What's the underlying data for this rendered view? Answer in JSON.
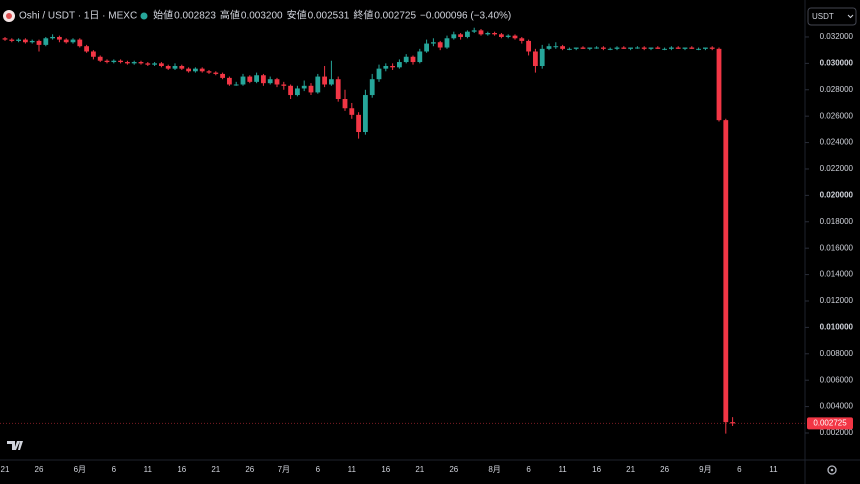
{
  "header": {
    "symbol": "Oshi / USDT · 1日 · MEXC",
    "ohlc": [
      {
        "label": "始値",
        "value": "0.002823"
      },
      {
        "label": "高値",
        "value": "0.003200"
      },
      {
        "label": "安値",
        "value": "0.002531"
      },
      {
        "label": "終値",
        "value": "0.002725"
      }
    ],
    "change": "−0.000096 (−3.40%)",
    "currency": "USDT"
  },
  "chart_data": {
    "type": "candlestick",
    "up_color": "#26a69a",
    "down_color": "#f23645",
    "categories": [
      "21",
      null,
      null,
      null,
      null,
      "26",
      null,
      null,
      null,
      null,
      null,
      "6月",
      null,
      null,
      null,
      null,
      "6",
      null,
      null,
      null,
      null,
      "11",
      null,
      null,
      null,
      null,
      "16",
      null,
      null,
      null,
      null,
      "21",
      null,
      null,
      null,
      null,
      "26",
      null,
      null,
      null,
      null,
      "7月",
      null,
      null,
      null,
      null,
      "6",
      null,
      null,
      null,
      null,
      "11",
      null,
      null,
      null,
      null,
      "16",
      null,
      null,
      null,
      null,
      "21",
      null,
      null,
      null,
      null,
      "26",
      null,
      null,
      null,
      null,
      null,
      "8月",
      null,
      null,
      null,
      null,
      "6",
      null,
      null,
      null,
      null,
      "11",
      null,
      null,
      null,
      null,
      "16",
      null,
      null,
      null,
      null,
      "21",
      null,
      null,
      null,
      null,
      "26",
      null,
      null,
      null,
      null,
      null,
      "9月",
      null,
      null,
      null,
      null,
      "6",
      null,
      null,
      null,
      null,
      "11",
      null,
      null,
      null,
      null
    ],
    "open": [
      0.0319,
      0.0318,
      0.0317,
      0.0318,
      0.0316,
      0.0317,
      0.0314,
      0.0319,
      0.032,
      0.0318,
      0.0316,
      0.0318,
      0.0313,
      0.0309,
      0.0305,
      0.0302,
      0.0301,
      0.0302,
      0.0301,
      0.03,
      0.0301,
      0.03,
      0.0299,
      0.03,
      0.0298,
      0.0296,
      0.0298,
      0.0296,
      0.0294,
      0.0296,
      0.0294,
      0.0293,
      0.0292,
      0.0289,
      0.0284,
      0.0284,
      0.029,
      0.0286,
      0.0291,
      0.0285,
      0.0288,
      0.0284,
      0.0283,
      0.0276,
      0.0281,
      0.0283,
      0.0278,
      0.029,
      0.0284,
      0.0288,
      0.0273,
      0.0266,
      0.0261,
      0.0248,
      0.0276,
      0.0288,
      0.0296,
      0.0298,
      0.0297,
      0.0301,
      0.0305,
      0.0301,
      0.0309,
      0.0315,
      0.0316,
      0.0312,
      0.0319,
      0.0322,
      0.032,
      0.0324,
      0.0325,
      0.0322,
      0.0323,
      0.0322,
      0.032,
      0.0321,
      0.0319,
      0.0317,
      0.0309,
      0.0298,
      0.0311,
      0.0313,
      0.0313,
      0.0311,
      0.0311,
      0.0312,
      0.0311,
      0.0312,
      0.0312,
      0.0311,
      0.0311,
      0.0312,
      0.0311,
      0.0312,
      0.0312,
      0.0311,
      0.0312,
      0.0311,
      0.0311,
      0.0312,
      0.0311,
      0.0312,
      0.0311,
      0.0311,
      0.0312,
      0.0311,
      0.0257,
      0.002823,
      null,
      null,
      null,
      null,
      null,
      null,
      null,
      null,
      null,
      null
    ],
    "high": [
      0.032,
      0.0319,
      0.0319,
      0.0319,
      0.0318,
      0.0318,
      0.032,
      0.0322,
      0.0321,
      0.0319,
      0.0319,
      0.0319,
      0.0314,
      0.031,
      0.0306,
      0.0303,
      0.0303,
      0.0303,
      0.0302,
      0.0302,
      0.0302,
      0.0301,
      0.0301,
      0.0301,
      0.0299,
      0.03,
      0.0299,
      0.0297,
      0.0297,
      0.0297,
      0.0295,
      0.0294,
      0.0293,
      0.029,
      0.0286,
      0.0292,
      0.0291,
      0.0293,
      0.0292,
      0.029,
      0.0289,
      0.0286,
      0.0284,
      0.0283,
      0.0287,
      0.0285,
      0.0292,
      0.0298,
      0.0302,
      0.029,
      0.028,
      0.027,
      0.0263,
      0.028,
      0.0292,
      0.0299,
      0.03,
      0.03,
      0.0303,
      0.0307,
      0.0306,
      0.0311,
      0.0318,
      0.0319,
      0.0317,
      0.0321,
      0.0324,
      0.0323,
      0.0325,
      0.0327,
      0.0326,
      0.0324,
      0.0324,
      0.0323,
      0.0322,
      0.0322,
      0.032,
      0.0318,
      0.0311,
      0.0314,
      0.0315,
      0.0316,
      0.0314,
      0.0312,
      0.0312,
      0.0313,
      0.0312,
      0.0313,
      0.0313,
      0.0312,
      0.0313,
      0.0313,
      0.0312,
      0.0313,
      0.0313,
      0.0312,
      0.0313,
      0.0312,
      0.0313,
      0.0313,
      0.0312,
      0.0313,
      0.0312,
      0.0312,
      0.0313,
      0.0312,
      0.0258,
      0.0032,
      null,
      null,
      null,
      null,
      null,
      null,
      null,
      null,
      null,
      null
    ],
    "low": [
      0.0317,
      0.0316,
      0.0316,
      0.0315,
      0.0315,
      0.0309,
      0.0313,
      0.0318,
      0.0316,
      0.0315,
      0.0315,
      0.0312,
      0.0308,
      0.0303,
      0.0301,
      0.03,
      0.03,
      0.03,
      0.0299,
      0.0299,
      0.0299,
      0.0298,
      0.0298,
      0.0297,
      0.0295,
      0.0295,
      0.0295,
      0.0293,
      0.0293,
      0.0293,
      0.0292,
      0.0291,
      0.0288,
      0.0283,
      0.0283,
      0.0283,
      0.0285,
      0.0285,
      0.0283,
      0.0284,
      0.0282,
      0.028,
      0.0273,
      0.0275,
      0.0279,
      0.0276,
      0.0277,
      0.0282,
      0.0283,
      0.0271,
      0.0264,
      0.0258,
      0.0243,
      0.0246,
      0.0274,
      0.0286,
      0.0294,
      0.0295,
      0.0296,
      0.03,
      0.0299,
      0.03,
      0.0308,
      0.0313,
      0.031,
      0.0311,
      0.0318,
      0.0318,
      0.0319,
      0.0323,
      0.0321,
      0.0321,
      0.0321,
      0.0319,
      0.0319,
      0.0318,
      0.0315,
      0.0306,
      0.0293,
      0.0296,
      0.031,
      0.0311,
      0.031,
      0.031,
      0.031,
      0.0311,
      0.031,
      0.0311,
      0.031,
      0.031,
      0.031,
      0.0311,
      0.031,
      0.0311,
      0.031,
      0.031,
      0.0311,
      0.031,
      0.031,
      0.0311,
      0.031,
      0.0311,
      0.031,
      0.031,
      0.031,
      0.0256,
      0.00195,
      0.002531,
      null,
      null,
      null,
      null,
      null,
      null,
      null,
      null,
      null,
      null
    ],
    "close": [
      0.0318,
      0.0317,
      0.0318,
      0.0316,
      0.0317,
      0.0314,
      0.0319,
      0.032,
      0.0318,
      0.0316,
      0.0318,
      0.0313,
      0.0309,
      0.0305,
      0.0302,
      0.0301,
      0.0302,
      0.0301,
      0.03,
      0.0301,
      0.03,
      0.0299,
      0.03,
      0.0298,
      0.0296,
      0.0298,
      0.0296,
      0.0294,
      0.0296,
      0.0294,
      0.0293,
      0.0292,
      0.0289,
      0.0284,
      0.0284,
      0.029,
      0.0286,
      0.0291,
      0.0285,
      0.0288,
      0.0284,
      0.0283,
      0.0276,
      0.0281,
      0.0283,
      0.0278,
      0.029,
      0.0284,
      0.0288,
      0.0273,
      0.0266,
      0.0261,
      0.0248,
      0.0276,
      0.0288,
      0.0296,
      0.0298,
      0.0297,
      0.0301,
      0.0305,
      0.0301,
      0.0309,
      0.0315,
      0.0316,
      0.0312,
      0.0319,
      0.0322,
      0.032,
      0.0324,
      0.0325,
      0.0322,
      0.0323,
      0.0322,
      0.032,
      0.0321,
      0.0319,
      0.0317,
      0.0309,
      0.0298,
      0.0311,
      0.0313,
      0.0313,
      0.0311,
      0.0311,
      0.0312,
      0.0311,
      0.0312,
      0.0312,
      0.0311,
      0.0311,
      0.0312,
      0.0311,
      0.0312,
      0.0312,
      0.0311,
      0.0312,
      0.0311,
      0.0311,
      0.0312,
      0.0311,
      0.0312,
      0.0311,
      0.0311,
      0.0312,
      0.0311,
      0.0257,
      0.002823,
      0.002725,
      null,
      null,
      null,
      null,
      null,
      null,
      null,
      null,
      null,
      null
    ],
    "ylim": [
      0,
      0.0348
    ],
    "yticks": [
      {
        "value": 0.002,
        "label": "0.002000"
      },
      {
        "value": 0.004,
        "label": "0.004000"
      },
      {
        "value": 0.006,
        "label": "0.006000"
      },
      {
        "value": 0.008,
        "label": "0.008000"
      },
      {
        "value": 0.01,
        "label": "0.010000"
      },
      {
        "value": 0.012,
        "label": "0.012000"
      },
      {
        "value": 0.014,
        "label": "0.014000"
      },
      {
        "value": 0.016,
        "label": "0.016000"
      },
      {
        "value": 0.018,
        "label": "0.018000"
      },
      {
        "value": 0.02,
        "label": "0.020000"
      },
      {
        "value": 0.022,
        "label": "0.022000"
      },
      {
        "value": 0.024,
        "label": "0.024000"
      },
      {
        "value": 0.026,
        "label": "0.026000"
      },
      {
        "value": 0.028,
        "label": "0.028000"
      },
      {
        "value": 0.03,
        "label": "0.030000"
      },
      {
        "value": 0.032,
        "label": "0.032000"
      }
    ],
    "last_price_label": "0.002725"
  }
}
